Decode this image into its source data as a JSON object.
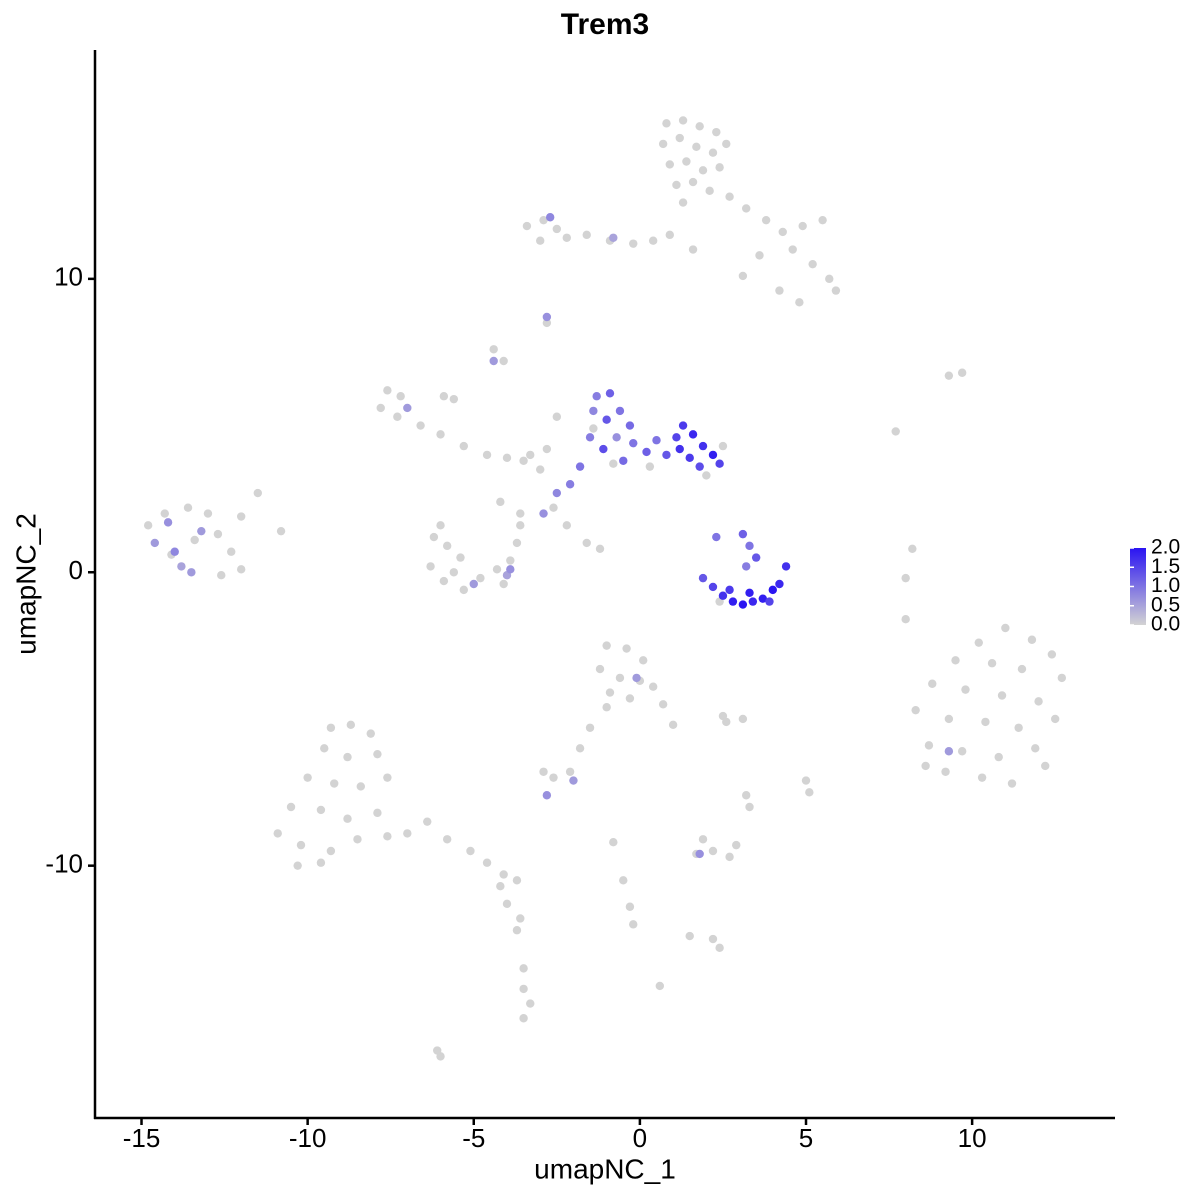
{
  "chart_data": {
    "type": "scatter",
    "title": "Trem3",
    "x_label": "umapNC_1",
    "y_label": "umapNC_2",
    "xlim": [
      -16.4,
      14.3
    ],
    "ylim": [
      -18.6,
      17.8
    ],
    "xticks": [
      -15,
      -10,
      -5,
      0,
      5,
      10
    ],
    "yticks": [
      -10,
      0,
      10
    ],
    "colorbar": {
      "lim": [
        0,
        2
      ],
      "colors": [
        "#d3d3d3",
        "#2a14f2"
      ],
      "ticks": [
        {
          "value": 0,
          "label": "0.0"
        },
        0.5,
        {
          "value": 1,
          "label": "1.0"
        },
        1.5,
        {
          "value": 2,
          "label": "2.0"
        }
      ]
    },
    "x": [
      0.8,
      1.3,
      1.8,
      2.3,
      0.7,
      1.2,
      1.7,
      2.2,
      2.6,
      0.9,
      1.4,
      1.9,
      2.4,
      1.1,
      1.6,
      2.1,
      1.3,
      2.7,
      3.2,
      3.8,
      4.3,
      4.9,
      5.5,
      4.6,
      5.2,
      5.7,
      5.9,
      4.2,
      4.8,
      3.6,
      0.9,
      0.4,
      1.6,
      3.1,
      -3.4,
      -2.9,
      -2.5,
      -3.0,
      -2.2,
      -1.6,
      -0.9,
      -0.2,
      -2.7,
      -0.8,
      -2.8,
      -2.8,
      -4.4,
      -4.4,
      -4.1,
      -7.6,
      -7.2,
      -7.8,
      -7.0,
      -7.3,
      -6.6,
      -6.0,
      -5.3,
      -4.6,
      -4.0,
      -3.5,
      -5.6,
      -5.9,
      -3.3,
      -2.8,
      -3.0,
      -2.6,
      -3.6,
      -4.2,
      -2.2,
      -1.6,
      -1.2,
      -2.5,
      -1.3,
      -0.9,
      -1.4,
      -1.0,
      -0.6,
      -0.3,
      -1.5,
      -1.1,
      -0.7,
      -0.2,
      0.2,
      0.5,
      0.8,
      1.1,
      1.3,
      1.6,
      1.9,
      2.2,
      1.5,
      1.8,
      2.4,
      1.2,
      -0.5,
      -1.8,
      -2.1,
      -2.5,
      -2.9,
      -1.4,
      0.3,
      -0.8,
      2.0,
      2.5,
      1.9,
      2.2,
      2.5,
      2.8,
      3.1,
      3.4,
      3.7,
      4.0,
      4.2,
      2.7,
      3.3,
      3.9,
      3.1,
      3.3,
      3.5,
      3.2,
      2.3,
      4.4,
      2.4,
      -6.2,
      -5.8,
      -5.4,
      -6.3,
      -5.9,
      -5.3,
      -4.8,
      -4.3,
      -3.9,
      -3.7,
      -3.6,
      -4.1,
      -5.6,
      -5.0,
      -4.0,
      -3.9,
      -6.0,
      -14.8,
      -14.3,
      -13.6,
      -13.0,
      -14.6,
      -14.1,
      -13.4,
      -12.7,
      -12.3,
      -12.0,
      -13.8,
      -14.0,
      -13.2,
      -14.2,
      -12.6,
      -11.5,
      -10.8,
      -12.0,
      -13.5,
      8.0,
      8.2,
      8.0,
      7.7,
      9.3,
      9.7,
      11.0,
      10.2,
      11.8,
      12.4,
      9.5,
      10.6,
      11.5,
      12.7,
      8.8,
      9.8,
      10.9,
      12.0,
      8.3,
      9.3,
      10.4,
      11.4,
      12.5,
      8.7,
      9.7,
      10.8,
      11.9,
      9.2,
      10.3,
      11.2,
      9.3,
      8.6,
      12.2,
      -1.0,
      -0.4,
      0.1,
      -1.2,
      -0.6,
      0.0,
      0.4,
      -0.9,
      -0.3,
      0.7,
      1.0,
      -1.0,
      -1.5,
      -1.8,
      -0.1,
      2.5,
      3.1,
      2.6,
      -2.9,
      -2.6,
      -2.1,
      -2.8,
      -2.0,
      3.2,
      3.3,
      5.0,
      5.1,
      1.7,
      2.2,
      2.7,
      2.9,
      1.9,
      1.8,
      2.2,
      2.4,
      1.5,
      -0.8,
      -0.5,
      -0.3,
      -0.2,
      0.6,
      -6.0,
      -6.1,
      -9.3,
      -8.7,
      -8.1,
      -9.5,
      -8.8,
      -7.9,
      -10.0,
      -9.2,
      -8.4,
      -7.6,
      -10.5,
      -9.6,
      -8.8,
      -7.9,
      -10.9,
      -10.2,
      -9.3,
      -8.5,
      -7.6,
      -10.3,
      -9.6,
      -7.0,
      -6.4,
      -5.8,
      -5.1,
      -4.6,
      -4.1,
      -3.7,
      -4.2,
      -4.0,
      -3.7,
      -3.5,
      -3.5,
      -3.3,
      -3.5,
      -3.6
    ],
    "y": [
      15.3,
      15.4,
      15.2,
      15.0,
      14.6,
      14.8,
      14.5,
      14.3,
      14.6,
      13.9,
      14.0,
      13.7,
      13.8,
      13.2,
      13.3,
      13.0,
      12.6,
      12.8,
      12.4,
      12.0,
      11.6,
      11.8,
      12.0,
      11.0,
      10.5,
      10.0,
      9.6,
      9.6,
      9.2,
      10.8,
      11.5,
      11.3,
      11.0,
      10.1,
      11.8,
      12.0,
      11.7,
      11.3,
      11.4,
      11.5,
      11.3,
      11.2,
      12.1,
      11.4,
      8.7,
      8.5,
      7.6,
      7.2,
      7.2,
      6.2,
      6.0,
      5.6,
      5.6,
      5.3,
      5.0,
      4.7,
      4.3,
      4.0,
      3.9,
      3.8,
      5.9,
      6.0,
      4.0,
      4.2,
      3.5,
      2.2,
      2.0,
      2.4,
      1.6,
      1.0,
      0.8,
      5.3,
      6.0,
      6.1,
      5.5,
      5.2,
      5.5,
      5.0,
      4.6,
      4.2,
      4.6,
      4.4,
      4.1,
      4.5,
      4.0,
      4.6,
      5.0,
      4.7,
      4.3,
      4.0,
      3.9,
      3.6,
      3.7,
      4.2,
      3.8,
      3.6,
      3.0,
      2.7,
      2.0,
      4.9,
      3.6,
      3.7,
      3.3,
      4.3,
      -0.2,
      -0.5,
      -0.8,
      -1.0,
      -1.1,
      -1.0,
      -0.9,
      -0.6,
      -0.4,
      -0.6,
      -0.7,
      -1.0,
      1.3,
      0.9,
      0.5,
      0.2,
      1.2,
      0.2,
      -1.0,
      1.2,
      0.9,
      0.5,
      0.2,
      -0.3,
      -0.6,
      -0.2,
      0.1,
      0.4,
      1.0,
      1.6,
      -0.4,
      0.0,
      -0.4,
      -0.1,
      0.1,
      1.6,
      1.6,
      2.0,
      2.2,
      2.0,
      1.0,
      0.6,
      1.1,
      1.3,
      0.7,
      0.1,
      0.2,
      0.7,
      1.4,
      1.7,
      -0.1,
      2.7,
      1.4,
      1.9,
      0.0,
      -0.2,
      0.8,
      -1.6,
      4.8,
      6.7,
      6.8,
      -1.9,
      -2.4,
      -2.3,
      -2.8,
      -3.0,
      -3.1,
      -3.3,
      -3.6,
      -3.8,
      -4.0,
      -4.2,
      -4.4,
      -4.7,
      -5.0,
      -5.1,
      -5.3,
      -5.0,
      -5.9,
      -6.1,
      -6.3,
      -6.0,
      -6.8,
      -7.0,
      -7.2,
      -6.1,
      -6.6,
      -6.6,
      -2.5,
      -2.6,
      -3.0,
      -3.3,
      -3.6,
      -3.7,
      -3.9,
      -4.1,
      -4.3,
      -4.5,
      -5.2,
      -4.6,
      -5.3,
      -6.0,
      -3.6,
      -4.9,
      -5.0,
      -5.1,
      -6.8,
      -7.0,
      -6.8,
      -7.6,
      -7.1,
      -7.6,
      -8.0,
      -7.1,
      -7.5,
      -9.6,
      -9.5,
      -9.7,
      -9.3,
      -9.1,
      -9.6,
      -12.5,
      -12.8,
      -12.4,
      -9.2,
      -10.5,
      -11.4,
      -12.0,
      -14.1,
      -16.5,
      -16.3,
      -5.3,
      -5.2,
      -5.5,
      -6.0,
      -6.3,
      -6.2,
      -7.0,
      -7.2,
      -7.3,
      -7.0,
      -8.0,
      -8.1,
      -8.4,
      -8.2,
      -8.9,
      -9.3,
      -9.5,
      -9.1,
      -9.0,
      -10.0,
      -9.9,
      -8.9,
      -8.5,
      -9.1,
      -9.5,
      -9.9,
      -10.3,
      -10.5,
      -10.7,
      -11.3,
      -12.2,
      -13.5,
      -14.2,
      -14.7,
      -15.2,
      -11.8
    ],
    "values": [
      0,
      0,
      0,
      0,
      0,
      0,
      0,
      0,
      0,
      0,
      0,
      0,
      0,
      0,
      0,
      0,
      0,
      0,
      0,
      0,
      0,
      0,
      0,
      0,
      0,
      0,
      0,
      0,
      0,
      0,
      0,
      0,
      0,
      0,
      0,
      0,
      0,
      0,
      0,
      0,
      0,
      0,
      0.8,
      0.5,
      0.7,
      0,
      0,
      0.6,
      0,
      0,
      0,
      0,
      0.6,
      0,
      0,
      0,
      0,
      0,
      0,
      0,
      0,
      0,
      0,
      0,
      0,
      0,
      0,
      0,
      0,
      0,
      0,
      0,
      0.9,
      1.2,
      0.8,
      1.3,
      1.0,
      1.1,
      0.9,
      1.4,
      0.7,
      1.0,
      1.2,
      1.0,
      1.3,
      1.5,
      1.6,
      1.8,
      1.7,
      1.9,
      1.6,
      1.4,
      1.5,
      1.7,
      1.1,
      1.0,
      0.9,
      0.8,
      0.7,
      0,
      0,
      0,
      0,
      0,
      1.3,
      1.5,
      1.7,
      1.9,
      2.0,
      1.8,
      1.9,
      2.0,
      1.8,
      1.6,
      1.9,
      1.5,
      1.2,
      1.0,
      1.3,
      0.9,
      1.0,
      1.7,
      0,
      0,
      0,
      0,
      0,
      0,
      0,
      0,
      0,
      0,
      0,
      0,
      0,
      0,
      0.6,
      0.5,
      0.7,
      0,
      0,
      0,
      0,
      0,
      0.6,
      0,
      0,
      0,
      0,
      0,
      0.5,
      0.8,
      0.6,
      0.7,
      0,
      0,
      0,
      0,
      0.6,
      0,
      0,
      0,
      0,
      0,
      0,
      0,
      0,
      0,
      0,
      0,
      0,
      0,
      0,
      0,
      0,
      0,
      0,
      0,
      0,
      0,
      0,
      0,
      0,
      0,
      0,
      0,
      0,
      0,
      0,
      0.6,
      0,
      0,
      0,
      0,
      0,
      0,
      0,
      0,
      0,
      0,
      0,
      0,
      0,
      0,
      0,
      0,
      0.6,
      0,
      0,
      0,
      0,
      0,
      0,
      0.7,
      0.6,
      0,
      0,
      0,
      0,
      0,
      0,
      0,
      0,
      0,
      0.7,
      0,
      0,
      0,
      0,
      0,
      0,
      0,
      0,
      0,
      0,
      0,
      0,
      0,
      0,
      0,
      0,
      0,
      0,
      0,
      0,
      0,
      0,
      0,
      0,
      0,
      0,
      0,
      0,
      0,
      0,
      0,
      0,
      0,
      0,
      0,
      0,
      0,
      0,
      0,
      0,
      0,
      0,
      0,
      0,
      0,
      0
    ]
  }
}
